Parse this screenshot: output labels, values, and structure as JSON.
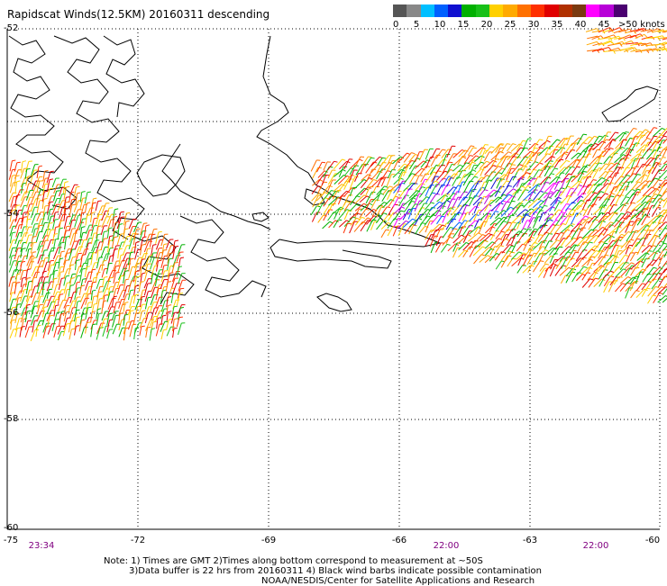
{
  "title": "Rapidscat Winds(12.5KM) 20160311 descending",
  "legend": {
    "colors": [
      "#555555",
      "#888888",
      "#00bfff",
      "#0060ff",
      "#1010d0",
      "#00b000",
      "#18c018",
      "#ffd000",
      "#ffaa00",
      "#ff7000",
      "#ff3000",
      "#e00000",
      "#b03000",
      "#7a3a10",
      "#ff00ff",
      "#b800d8",
      "#4a0070"
    ],
    "ticks": [
      "0",
      "5",
      "10",
      "15",
      "20",
      "25",
      "30",
      "35",
      "40",
      "45",
      ">50 knots"
    ]
  },
  "axes": {
    "lat_labels": [
      "-52",
      "-54",
      "-56",
      "-58",
      "-60"
    ],
    "lon_labels": [
      "-75",
      "-72",
      "-69",
      "-66",
      "-63",
      "-60"
    ],
    "time_labels": [
      "23:34",
      "22:00",
      "22:00"
    ]
  },
  "notes": {
    "line1": "Note: 1) Times are GMT 2)Times along bottom correspond to measurement at ~50S",
    "line2": "3)Data buffer is 22 hrs from 20160311 4) Black wind barbs indicate possible contamination",
    "line3": "NOAA/NESDIS/Center for Satellite Applications and Research"
  }
}
